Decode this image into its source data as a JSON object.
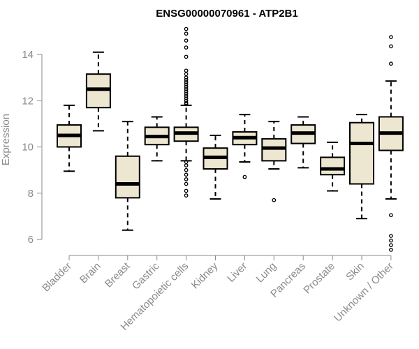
{
  "chart_data": {
    "type": "box",
    "title": "ENSG00000070961 - ATP2B1",
    "ylabel": "Expression",
    "xlabel": "",
    "ylim": [
      5.3,
      15.2
    ],
    "yticks": [
      6,
      8,
      10,
      12,
      14
    ],
    "colors": {
      "box_fill": "#ede7d1",
      "box_stroke": "#000000",
      "axis": "#8a8a8a"
    },
    "categories": [
      "Bladder",
      "Brain",
      "Breast",
      "Gastric",
      "Hematopoietic cells",
      "Kidney",
      "Liver",
      "Lung",
      "Pancreas",
      "Prostate",
      "Skin",
      "Unknown / Other"
    ],
    "boxes": [
      {
        "label": "Bladder",
        "whisker_low": 8.95,
        "q1": 10.0,
        "median": 10.5,
        "q3": 10.95,
        "whisker_high": 11.8,
        "outliers": []
      },
      {
        "label": "Brain",
        "whisker_low": 10.7,
        "q1": 11.7,
        "median": 12.5,
        "q3": 13.15,
        "whisker_high": 14.1,
        "outliers": []
      },
      {
        "label": "Breast",
        "whisker_low": 6.4,
        "q1": 7.8,
        "median": 8.4,
        "q3": 9.6,
        "whisker_high": 11.1,
        "outliers": []
      },
      {
        "label": "Gastric",
        "whisker_low": 9.4,
        "q1": 10.1,
        "median": 10.45,
        "q3": 10.85,
        "whisker_high": 11.3,
        "outliers": []
      },
      {
        "label": "Hematopoietic cells",
        "whisker_low": 9.4,
        "q1": 10.25,
        "median": 10.6,
        "q3": 10.85,
        "whisker_high": 11.8,
        "outliers": [
          15.1,
          14.9,
          14.6,
          14.3,
          13.9,
          13.3,
          13.15,
          13.0,
          12.9,
          12.8,
          12.7,
          12.6,
          12.5,
          12.4,
          12.3,
          12.2,
          12.1,
          12.0,
          11.9,
          11.85,
          9.35,
          9.2,
          9.0,
          8.8,
          8.6,
          8.4,
          8.1,
          7.9
        ]
      },
      {
        "label": "Kidney",
        "whisker_low": 7.75,
        "q1": 9.05,
        "median": 9.55,
        "q3": 9.95,
        "whisker_high": 10.5,
        "outliers": []
      },
      {
        "label": "Liver",
        "whisker_low": 9.35,
        "q1": 10.1,
        "median": 10.4,
        "q3": 10.65,
        "whisker_high": 11.4,
        "outliers": [
          8.7
        ]
      },
      {
        "label": "Lung",
        "whisker_low": 9.05,
        "q1": 9.4,
        "median": 9.95,
        "q3": 10.35,
        "whisker_high": 11.1,
        "outliers": [
          7.7
        ]
      },
      {
        "label": "Pancreas",
        "whisker_low": 9.1,
        "q1": 10.15,
        "median": 10.6,
        "q3": 10.95,
        "whisker_high": 11.3,
        "outliers": []
      },
      {
        "label": "Prostate",
        "whisker_low": 8.1,
        "q1": 8.8,
        "median": 9.05,
        "q3": 9.55,
        "whisker_high": 10.2,
        "outliers": []
      },
      {
        "label": "Skin",
        "whisker_low": 6.9,
        "q1": 8.4,
        "median": 10.15,
        "q3": 11.05,
        "whisker_high": 11.4,
        "outliers": []
      },
      {
        "label": "Unknown / Other",
        "whisker_low": 7.75,
        "q1": 9.85,
        "median": 10.6,
        "q3": 11.3,
        "whisker_high": 12.85,
        "outliers": [
          14.75,
          14.35,
          13.6,
          7.05,
          6.15,
          5.95,
          5.75,
          5.55
        ]
      }
    ]
  }
}
